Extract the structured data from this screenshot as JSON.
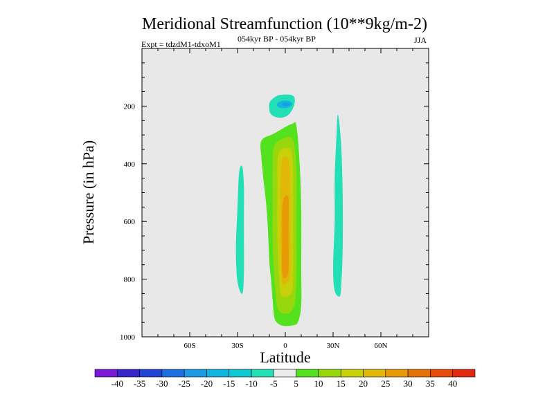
{
  "chart_data": {
    "type": "contour",
    "title": "Meridional Streamfunction (10**9kg/m-2)",
    "subtitle_left": "Expt = tdzdM1-tdxoM1",
    "subtitle_center": "054kyr BP - 054kyr BP",
    "subtitle_right": "JJA",
    "xlabel": "Latitude",
    "ylabel": "Pressure (in hPa)",
    "xlim": [
      -90,
      90
    ],
    "ylim": [
      1000,
      0
    ],
    "x_ticks": [
      {
        "value": -60,
        "label": "60S"
      },
      {
        "value": -30,
        "label": "30S"
      },
      {
        "value": 0,
        "label": "0"
      },
      {
        "value": 30,
        "label": "30N"
      },
      {
        "value": 60,
        "label": "60N"
      }
    ],
    "y_ticks": [
      {
        "value": 200,
        "label": "200"
      },
      {
        "value": 400,
        "label": "400"
      },
      {
        "value": 600,
        "label": "600"
      },
      {
        "value": 800,
        "label": "800"
      },
      {
        "value": 1000,
        "label": "1000"
      }
    ],
    "colorbar": {
      "labels": [
        "-40",
        "-35",
        "-30",
        "-25",
        "-20",
        "-15",
        "-10",
        "-5",
        "5",
        "10",
        "15",
        "20",
        "25",
        "30",
        "35",
        "40"
      ],
      "colors": [
        "#7b17d9",
        "#3524c9",
        "#1f45d6",
        "#1c6fe0",
        "#1b9ae6",
        "#10b6e0",
        "#0cc9d4",
        "#22dfb6",
        "#ebebeb",
        "#54e21e",
        "#97d80c",
        "#c8d00a",
        "#e2b808",
        "#e79a06",
        "#e67206",
        "#e64b0a",
        "#e22a10"
      ]
    },
    "contours": [
      {
        "name": "upper-negative-cell-outer",
        "level": -10,
        "color": "#22dfb6",
        "points": [
          [
            -10,
            215
          ],
          [
            -10,
            190
          ],
          [
            -8,
            175
          ],
          [
            -4,
            162
          ],
          [
            2,
            160
          ],
          [
            5,
            165
          ],
          [
            6,
            180
          ],
          [
            5,
            205
          ],
          [
            2,
            230
          ],
          [
            -2,
            240
          ],
          [
            -6,
            238
          ],
          [
            -9,
            228
          ]
        ]
      },
      {
        "name": "upper-negative-cell-mid",
        "level": -15,
        "color": "#10b6e0",
        "points": [
          [
            -5,
            200
          ],
          [
            -5,
            190
          ],
          [
            -2,
            182
          ],
          [
            2,
            182
          ],
          [
            4,
            188
          ],
          [
            4,
            198
          ],
          [
            1,
            206
          ],
          [
            -3,
            206
          ]
        ]
      },
      {
        "name": "upper-negative-cell-core",
        "level": -20,
        "color": "#1b9ae6",
        "points": [
          [
            -2,
            196
          ],
          [
            -1,
            190
          ],
          [
            2,
            189
          ],
          [
            3,
            194
          ],
          [
            1,
            199
          ]
        ]
      },
      {
        "name": "southern-negative-band",
        "level": -10,
        "color": "#22dfb6",
        "points": [
          [
            -29,
            430
          ],
          [
            -27,
            410
          ],
          [
            -26,
            480
          ],
          [
            -26,
            600
          ],
          [
            -26,
            780
          ],
          [
            -27,
            850
          ],
          [
            -30,
            810
          ],
          [
            -31,
            700
          ],
          [
            -30,
            550
          ]
        ]
      },
      {
        "name": "northern-negative-band",
        "level": -10,
        "color": "#22dfb6",
        "points": [
          [
            33,
            230
          ],
          [
            35,
            330
          ],
          [
            36,
            500
          ],
          [
            36,
            700
          ],
          [
            35,
            830
          ],
          [
            34,
            860
          ],
          [
            31,
            840
          ],
          [
            30,
            760
          ],
          [
            31,
            600
          ],
          [
            31,
            450
          ],
          [
            32,
            320
          ]
        ]
      },
      {
        "name": "positive-cell-5",
        "level": 5,
        "color": "#54e21e",
        "points": [
          [
            -15,
            320
          ],
          [
            -7,
            295
          ],
          [
            4,
            262
          ],
          [
            7,
            270
          ],
          [
            9,
            400
          ],
          [
            10,
            560
          ],
          [
            10,
            760
          ],
          [
            10,
            890
          ],
          [
            8,
            948
          ],
          [
            5,
            960
          ],
          [
            -1,
            962
          ],
          [
            -5,
            952
          ],
          [
            -7,
            930
          ],
          [
            -8,
            870
          ],
          [
            -9,
            800
          ],
          [
            -10,
            740
          ],
          [
            -11,
            620
          ],
          [
            -12,
            540
          ],
          [
            -14,
            440
          ],
          [
            -15,
            380
          ]
        ]
      },
      {
        "name": "positive-cell-10",
        "level": 10,
        "color": "#97d80c",
        "points": [
          [
            -7,
            340
          ],
          [
            0,
            310
          ],
          [
            5,
            320
          ],
          [
            7,
            420
          ],
          [
            7,
            600
          ],
          [
            7,
            780
          ],
          [
            6,
            880
          ],
          [
            3,
            915
          ],
          [
            -2,
            918
          ],
          [
            -5,
            898
          ],
          [
            -6,
            850
          ],
          [
            -7,
            780
          ],
          [
            -8,
            660
          ],
          [
            -8,
            520
          ],
          [
            -8,
            420
          ]
        ]
      },
      {
        "name": "positive-cell-15",
        "level": 15,
        "color": "#c8d00a",
        "points": [
          [
            -4,
            360
          ],
          [
            1,
            345
          ],
          [
            4,
            360
          ],
          [
            5,
            450
          ],
          [
            5,
            600
          ],
          [
            5,
            780
          ],
          [
            4,
            845
          ],
          [
            0,
            862
          ],
          [
            -3,
            850
          ],
          [
            -4,
            780
          ],
          [
            -5,
            650
          ],
          [
            -5,
            500
          ],
          [
            -5,
            420
          ]
        ]
      },
      {
        "name": "positive-cell-20",
        "level": 20,
        "color": "#e2b808",
        "points": [
          [
            -2,
            385
          ],
          [
            2,
            385
          ],
          [
            3,
            470
          ],
          [
            3,
            620
          ],
          [
            3,
            780
          ],
          [
            1,
            812
          ],
          [
            -2,
            808
          ],
          [
            -3,
            700
          ],
          [
            -3,
            560
          ],
          [
            -3,
            460
          ]
        ]
      },
      {
        "name": "positive-cell-25",
        "level": 25,
        "color": "#e79a06",
        "points": [
          [
            -1,
            520
          ],
          [
            2,
            520
          ],
          [
            2,
            640
          ],
          [
            2,
            770
          ],
          [
            0,
            795
          ],
          [
            -2,
            780
          ],
          [
            -2,
            650
          ],
          [
            -2,
            560
          ]
        ]
      }
    ]
  }
}
